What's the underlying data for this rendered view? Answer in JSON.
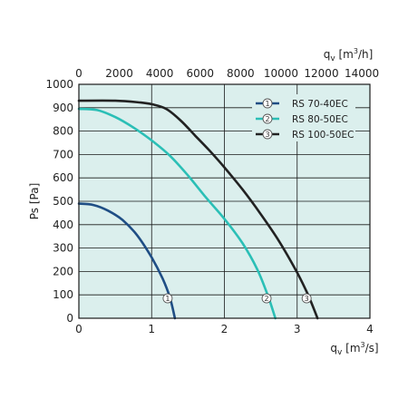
{
  "chart_data": {
    "type": "line",
    "title": "",
    "x": {
      "label_main": "q",
      "label_sub": "v",
      "label_unit_open": " [m",
      "label_unit_sup": "3",
      "label_unit_close": "/s]",
      "lim": [
        0,
        4
      ],
      "ticks": [
        0,
        1,
        2,
        3,
        4
      ]
    },
    "x_top": {
      "label_main": "q",
      "label_sub": "v",
      "label_unit_open": " [m",
      "label_unit_sup": "3",
      "label_unit_close": "/h]",
      "lim": [
        0,
        14400
      ],
      "ticks": [
        0,
        2000,
        4000,
        6000,
        8000,
        10000,
        12000,
        14000
      ]
    },
    "y": {
      "label": "Ps [Pa]",
      "lim": [
        0,
        1000
      ],
      "ticks": [
        0,
        100,
        200,
        300,
        400,
        500,
        600,
        700,
        800,
        900,
        1000
      ]
    },
    "grid": true,
    "legend_position": "top-right",
    "series": [
      {
        "name": "RS 70-40EC",
        "marker": "1",
        "color": "#1f4e85",
        "points": [
          [
            0,
            490
          ],
          [
            0.2,
            484
          ],
          [
            0.4,
            460
          ],
          [
            0.6,
            420
          ],
          [
            0.8,
            355
          ],
          [
            1.0,
            260
          ],
          [
            1.15,
            170
          ],
          [
            1.25,
            90
          ],
          [
            1.32,
            0
          ]
        ],
        "marker_at": [
          1.22,
          85
        ]
      },
      {
        "name": "RS 80-50EC",
        "marker": "2",
        "color": "#2bbfb6",
        "points": [
          [
            0,
            895
          ],
          [
            0.25,
            890
          ],
          [
            0.5,
            860
          ],
          [
            0.75,
            815
          ],
          [
            1.0,
            760
          ],
          [
            1.25,
            695
          ],
          [
            1.5,
            610
          ],
          [
            1.75,
            515
          ],
          [
            2.0,
            425
          ],
          [
            2.25,
            320
          ],
          [
            2.45,
            210
          ],
          [
            2.6,
            95
          ],
          [
            2.7,
            0
          ]
        ],
        "marker_at": [
          2.58,
          85
        ]
      },
      {
        "name": "RS 100-50EC",
        "marker": "3",
        "color": "#222222",
        "points": [
          [
            0,
            930
          ],
          [
            0.5,
            930
          ],
          [
            0.85,
            922
          ],
          [
            1.0,
            915
          ],
          [
            1.2,
            895
          ],
          [
            1.4,
            845
          ],
          [
            1.6,
            780
          ],
          [
            1.8,
            715
          ],
          [
            2.0,
            645
          ],
          [
            2.25,
            550
          ],
          [
            2.5,
            445
          ],
          [
            2.75,
            330
          ],
          [
            3.0,
            195
          ],
          [
            3.15,
            100
          ],
          [
            3.28,
            0
          ]
        ],
        "marker_at": [
          3.13,
          85
        ]
      }
    ],
    "colors": {
      "plot_bg": "#dbefed",
      "grid": "#1a1a1a",
      "frame": "#1a1a1a",
      "marker_fill": "#ffffff",
      "marker_stroke": "#555555"
    }
  }
}
